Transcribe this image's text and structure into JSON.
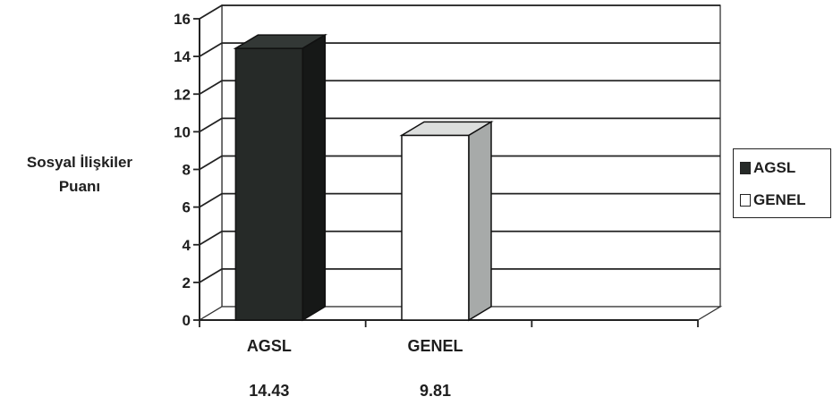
{
  "chart_data": {
    "type": "bar",
    "categories": [
      "AGSL",
      "GENEL"
    ],
    "values": [
      14.43,
      9.81
    ],
    "value_labels": [
      "14.43",
      "9.81"
    ],
    "title": "",
    "xlabel": "",
    "ylabel": "Sosyal İlişkiler Puanı",
    "ylabel_lines": [
      "Sosyal İlişkiler",
      "Puanı"
    ],
    "ylim": [
      0,
      16
    ],
    "yticks": [
      "0",
      "2",
      "4",
      "6",
      "8",
      "10",
      "12",
      "14",
      "16"
    ],
    "grid": true,
    "three_d": true,
    "legend_position": "right",
    "legend": [
      {
        "name": "AGSL",
        "color": "#262a28"
      },
      {
        "name": "GENEL",
        "color": "#ffffff"
      }
    ],
    "colors": {
      "AGSL": {
        "front": "#262a28",
        "top": "#333836",
        "side": "#161817"
      },
      "GENEL": {
        "front": "#ffffff",
        "top": "#dcdedd",
        "side": "#a7aaa9"
      }
    }
  }
}
